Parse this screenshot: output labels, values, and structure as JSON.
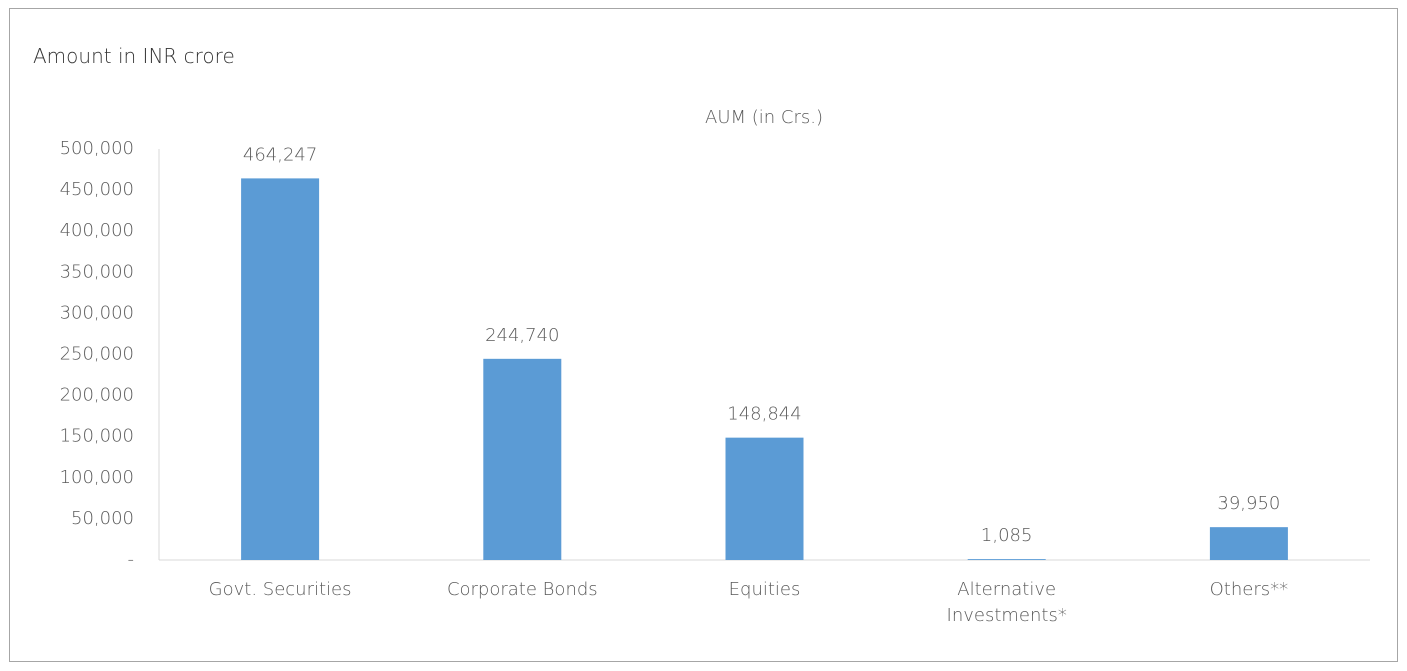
{
  "chart_data": {
    "type": "bar",
    "heading": "Amount in INR crore",
    "title": "AUM (in Crs.)",
    "categories": [
      "Govt. Securities",
      "Corporate Bonds",
      "Equities",
      "Alternative Investments*",
      "Others**"
    ],
    "values": [
      464247,
      244740,
      148844,
      1085,
      39950
    ],
    "value_labels": [
      "464,247",
      "244,740",
      "148,844",
      "1,085",
      "39,950"
    ],
    "color": "#5b9bd5",
    "ylim": [
      0,
      500000
    ],
    "yticks": [
      {
        "value": 0,
        "label": "-"
      },
      {
        "value": 50000,
        "label": "50,000"
      },
      {
        "value": 100000,
        "label": "100,000"
      },
      {
        "value": 150000,
        "label": "150,000"
      },
      {
        "value": 200000,
        "label": "200,000"
      },
      {
        "value": 250000,
        "label": "250,000"
      },
      {
        "value": 300000,
        "label": "300,000"
      },
      {
        "value": 350000,
        "label": "350,000"
      },
      {
        "value": 400000,
        "label": "400,000"
      },
      {
        "value": 450000,
        "label": "450,000"
      },
      {
        "value": 500000,
        "label": "500,000"
      }
    ],
    "grid": false
  }
}
